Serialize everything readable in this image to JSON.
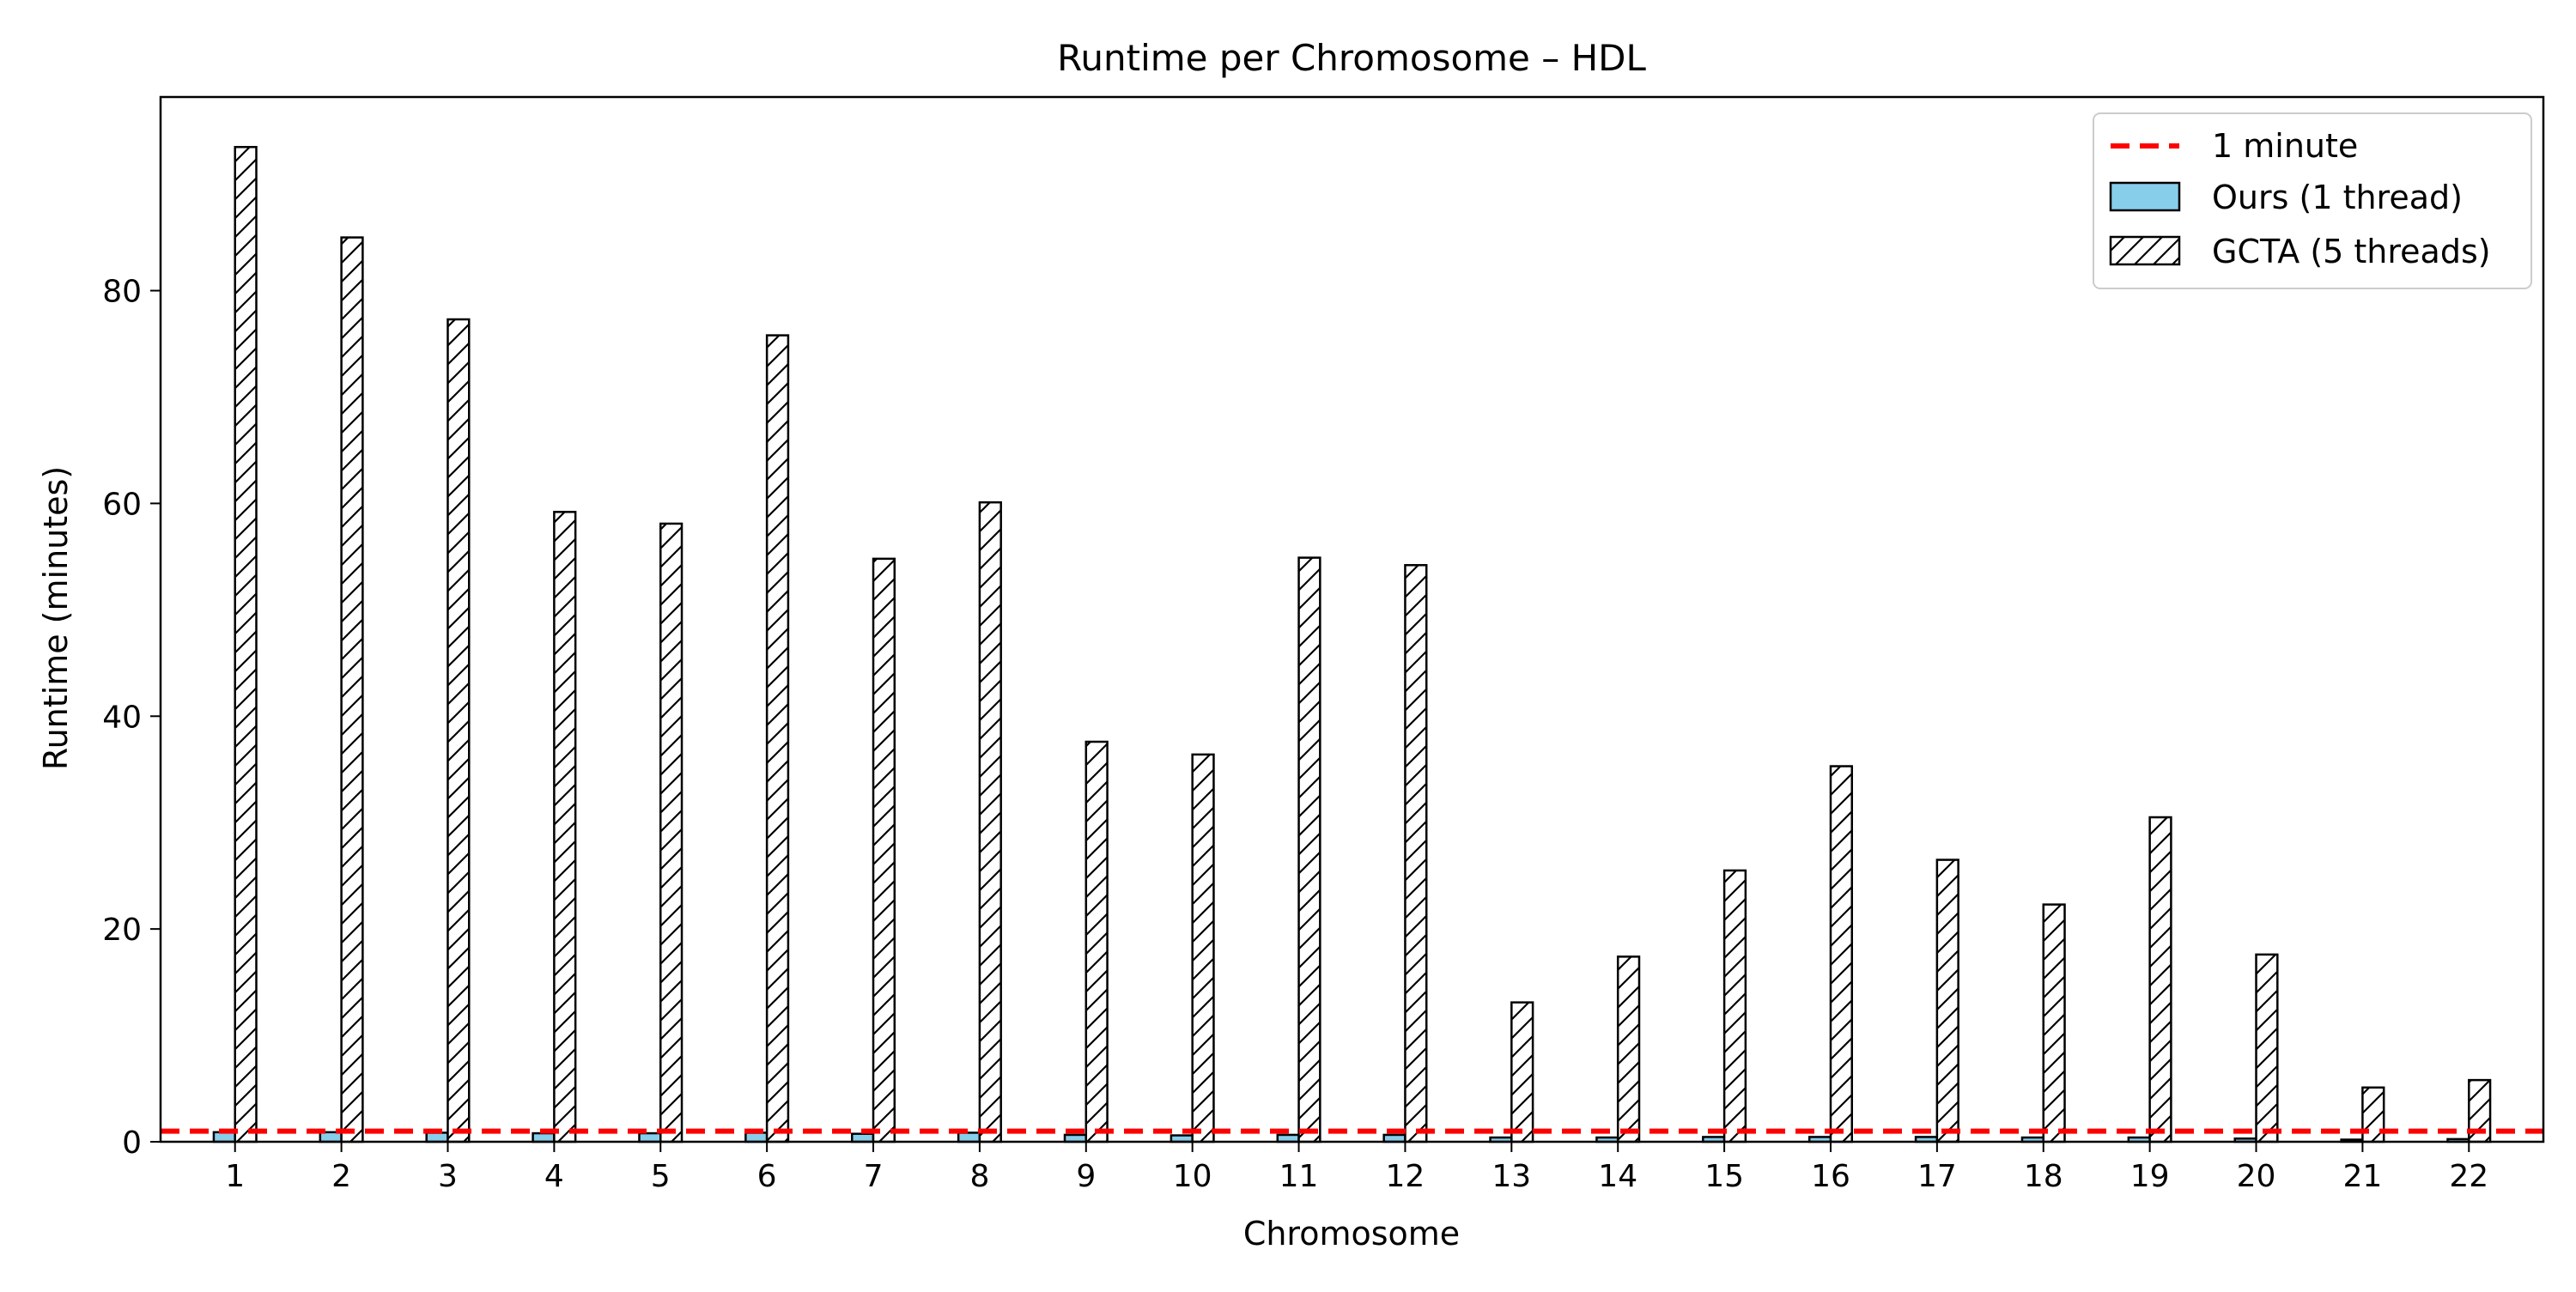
{
  "chart_data": {
    "type": "bar",
    "title": "Runtime per Chromosome – HDL",
    "xlabel": "Chromosome",
    "ylabel": "Runtime (minutes)",
    "categories": [
      "1",
      "2",
      "3",
      "4",
      "5",
      "6",
      "7",
      "8",
      "9",
      "10",
      "11",
      "12",
      "13",
      "14",
      "15",
      "16",
      "17",
      "18",
      "19",
      "20",
      "21",
      "22"
    ],
    "series": [
      {
        "name": "Ours (1 thread)",
        "color": "#87CEEB",
        "hatch": "none",
        "values": [
          0.9,
          0.9,
          0.85,
          0.8,
          0.8,
          0.85,
          0.75,
          0.85,
          0.65,
          0.6,
          0.65,
          0.65,
          0.4,
          0.4,
          0.45,
          0.45,
          0.45,
          0.4,
          0.4,
          0.3,
          0.2,
          0.25
        ]
      },
      {
        "name": "GCTA (5 threads)",
        "color": "#ffffff",
        "hatch": "diagonal",
        "values": [
          93.5,
          85.0,
          77.3,
          59.2,
          58.1,
          75.8,
          54.8,
          60.1,
          37.6,
          36.4,
          54.9,
          54.2,
          13.1,
          17.4,
          25.5,
          35.3,
          26.5,
          22.3,
          30.5,
          17.6,
          5.1,
          5.8
        ]
      }
    ],
    "reference_line": {
      "name": "1 minute",
      "y": 1,
      "color": "#FF0000",
      "style": "dashed"
    },
    "yticks": [
      0,
      20,
      40,
      60,
      80
    ],
    "ylim": [
      0,
      98.2
    ],
    "grid": false,
    "legend_position": "top-right"
  }
}
